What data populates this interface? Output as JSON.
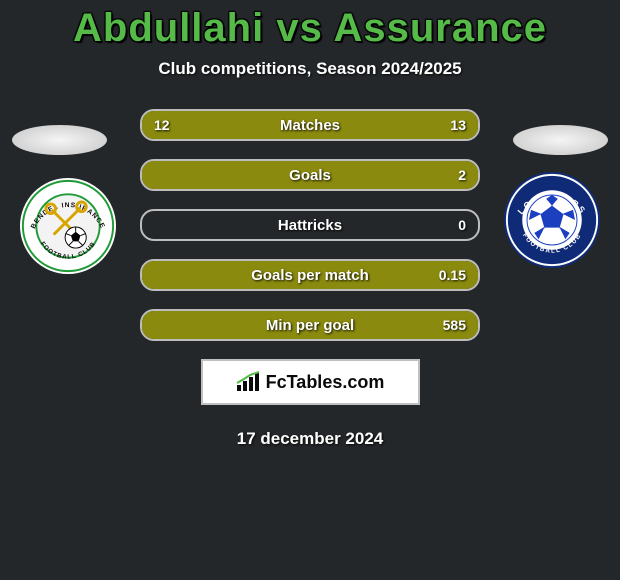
{
  "header": {
    "title": "Abdullahi vs Assurance",
    "subtitle": "Club competitions, Season 2024/2025",
    "title_color": "#55ba47"
  },
  "date_text": "17 december 2024",
  "fctables_label": "FcTables.com",
  "stats": {
    "rows": [
      {
        "label": "Matches",
        "left": "12",
        "right": "13",
        "left_pct": 48,
        "right_pct": 52,
        "left_color": "#8a8a0f",
        "right_color": "#8a8a0f"
      },
      {
        "label": "Goals",
        "left": "",
        "right": "2",
        "left_pct": 0,
        "right_pct": 100,
        "left_color": "#8a8a0f",
        "right_color": "#8a8a0f"
      },
      {
        "label": "Hattricks",
        "left": "",
        "right": "0",
        "left_pct": 0,
        "right_pct": 0,
        "left_color": "#8a8a0f",
        "right_color": "#8a8a0f"
      },
      {
        "label": "Goals per match",
        "left": "",
        "right": "0.15",
        "left_pct": 0,
        "right_pct": 100,
        "left_color": "#8a8a0f",
        "right_color": "#8a8a0f"
      },
      {
        "label": "Min per goal",
        "left": "",
        "right": "585",
        "left_pct": 0,
        "right_pct": 100,
        "left_color": "#8a8a0f",
        "right_color": "#8a8a0f"
      }
    ],
    "row_border_color": "#bdbdbd"
  },
  "crests": {
    "left": {
      "name": "bendel-insurance-crest",
      "outer_bg": "#ffffff",
      "ring_color": "#1e9a36",
      "inner_bg": "#f3f3f3",
      "icon_color": "#d8a400",
      "text_top": "BENDEL INSURANCE",
      "text_bottom": "FOOTBALL CLUB",
      "text_color": "#0c0c0c"
    },
    "right": {
      "name": "lobi-stars-crest",
      "outer_bg": "#0f2b78",
      "ring_color": "#ffffff",
      "inner_bg": "#ffffff",
      "ball_color": "#1b3fbf",
      "text_top": "LOBI STARS",
      "text_bottom": "FOOTBALL CLUB",
      "text_color": "#ffffff"
    }
  },
  "colors": {
    "page_bg": "#24272a",
    "accent": "#55ba47"
  }
}
